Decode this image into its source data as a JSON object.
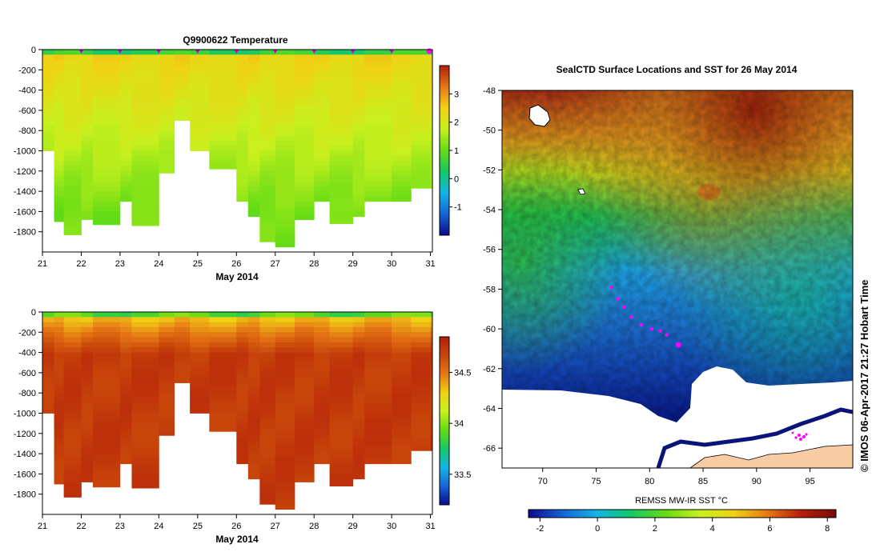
{
  "chart_data": [
    {
      "type": "heatmap",
      "title": "Q9900622  Temperature",
      "xlabel": "May 2014",
      "ylabel": "",
      "x_ticks": [
        "21",
        "22",
        "23",
        "24",
        "25",
        "26",
        "27",
        "28",
        "29",
        "30",
        "31"
      ],
      "y_ticks": [
        "0",
        "-200",
        "-400",
        "-600",
        "-800",
        "-1000",
        "-1200",
        "-1400",
        "-1600",
        "-1800"
      ],
      "xlim": [
        21,
        31.05
      ],
      "ylim": [
        -2000,
        0
      ],
      "profile_times": [
        21.0,
        21.3,
        21.55,
        22.0,
        22.3,
        23.0,
        23.3,
        24.0,
        24.4,
        24.8,
        25.3,
        26.0,
        26.3,
        26.6,
        27.0,
        27.5,
        28.0,
        28.4,
        29.0,
        29.3,
        30.0,
        30.5,
        31.0
      ],
      "profile_max_depth": [
        -1000,
        -1700,
        -1830,
        -1680,
        -1730,
        -1500,
        -1740,
        -1220,
        -700,
        -1000,
        -1180,
        -1500,
        -1650,
        -1900,
        -1950,
        -1680,
        -1500,
        -1720,
        -1650,
        -1500,
        -1500,
        -1370,
        -1370
      ],
      "colorbar": {
        "min": -2,
        "max": 4,
        "ticks": [
          "-1",
          "0",
          "1",
          "2",
          "3"
        ],
        "colors": [
          "#0a0a8c",
          "#1565d6",
          "#14b4e6",
          "#14c864",
          "#64dc14",
          "#c8f01e",
          "#f0d214",
          "#e67814",
          "#b41e0a"
        ]
      },
      "surface_value": 0.5,
      "deep_value": 1.1
    },
    {
      "type": "heatmap",
      "title": "",
      "xlabel": "May 2014",
      "ylabel": "",
      "x_ticks": [
        "21",
        "22",
        "23",
        "24",
        "25",
        "26",
        "27",
        "28",
        "29",
        "30",
        "31"
      ],
      "y_ticks": [
        "0",
        "-200",
        "-400",
        "-600",
        "-800",
        "-1000",
        "-1200",
        "-1400",
        "-1600",
        "-1800"
      ],
      "xlim": [
        21,
        31.05
      ],
      "ylim": [
        -2000,
        0
      ],
      "colorbar": {
        "min": 33.2,
        "max": 34.85,
        "ticks": [
          "33.5",
          "34",
          "34.5"
        ],
        "colors": [
          "#0a0a8c",
          "#1565d6",
          "#14b4e6",
          "#14c864",
          "#64dc14",
          "#c8f01e",
          "#f0d214",
          "#e67814",
          "#c8460a",
          "#b41e0a"
        ]
      },
      "surface_value": 33.9,
      "deep_value": 34.72
    },
    {
      "type": "heatmap",
      "title": "SealCTD Surface Locations and SST for 26 May 2014",
      "xlabel": "",
      "ylabel": "",
      "x_ticks": [
        "70",
        "75",
        "80",
        "85",
        "90",
        "95"
      ],
      "y_ticks": [
        "-48",
        "-50",
        "-52",
        "-54",
        "-56",
        "-58",
        "-60",
        "-62",
        "-64",
        "-66"
      ],
      "xlim": [
        66.2,
        99
      ],
      "ylim": [
        -67,
        -48
      ],
      "colorbar": {
        "label": "REMSS MW-IR SST °C",
        "min": -2.4,
        "max": 8.3,
        "ticks": [
          "-2",
          "0",
          "2",
          "4",
          "6",
          "8"
        ],
        "colors": [
          "#0a0a8c",
          "#1565d6",
          "#14b4e6",
          "#14c864",
          "#64dc14",
          "#c8f01e",
          "#f0d214",
          "#e67814",
          "#b41e0a",
          "#780a0a"
        ]
      },
      "seal_track": [
        {
          "lon": 76.4,
          "lat": -57.9
        },
        {
          "lon": 77.0,
          "lat": -58.5
        },
        {
          "lon": 77.6,
          "lat": -58.9
        },
        {
          "lon": 78.3,
          "lat": -59.4
        },
        {
          "lon": 79.2,
          "lat": -59.8
        },
        {
          "lon": 80.2,
          "lat": -60.0
        },
        {
          "lon": 81.0,
          "lat": -60.1
        },
        {
          "lon": 81.6,
          "lat": -60.3
        },
        {
          "lon": 82.7,
          "lat": -60.8
        }
      ]
    }
  ],
  "credit": "© IMOS 06-Apr-2017 21:27 Hobart Time"
}
